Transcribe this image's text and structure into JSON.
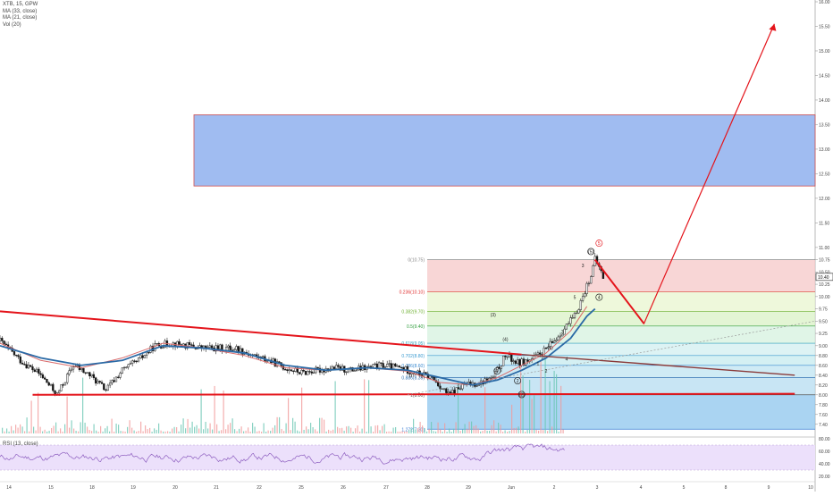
{
  "header": {
    "symbol_line": "XTB, 15, GPW",
    "indicators": [
      "MA (33, close)",
      "MA (21, close)",
      "Vol (20)"
    ]
  },
  "rsi_label": "RSI (13, close)",
  "colors": {
    "trend": "#e4141b",
    "ma_slow": "#2b6aa6",
    "ma_fast": "#d96a6a",
    "target_box": "#8fb0ee",
    "rsi_band": "#ece0fb",
    "rsi_line": "#8e5fc0",
    "vol_up": "#6cc7b4",
    "vol_down": "#f19a9a"
  },
  "chart_data": {
    "type": "candlestick",
    "symbol": "XTB",
    "interval": "15",
    "exchange": "GPW",
    "ylim": [
      7.25,
      16.0
    ],
    "price_scale": {
      "ticks": [
        "16.00",
        "15.50",
        "15.00",
        "14.50",
        "14.00",
        "13.50",
        "13.00",
        "12.50",
        "12.00",
        "11.50",
        "11.00",
        "10.75",
        "10.50",
        "10.25",
        "10.00",
        "9.75",
        "9.50",
        "9.25",
        "9.00",
        "8.80",
        "8.60",
        "8.40",
        "8.20",
        "8.00",
        "7.80",
        "7.60",
        "7.40"
      ],
      "current_price": "10.40"
    },
    "x_axis": {
      "ticks": [
        "14",
        "15",
        "18",
        "19",
        "20",
        "21",
        "22",
        "25",
        "26",
        "27",
        "28",
        "29",
        "Jun",
        "2",
        "3",
        "4",
        "5",
        "8",
        "9",
        "10"
      ]
    },
    "price_path": [
      [
        0,
        9.1
      ],
      [
        5,
        8.7
      ],
      [
        10,
        8.4
      ],
      [
        14,
        8.0
      ],
      [
        18,
        8.6
      ],
      [
        22,
        8.4
      ],
      [
        26,
        8.1
      ],
      [
        30,
        8.5
      ],
      [
        34,
        8.7
      ],
      [
        38,
        9.0
      ],
      [
        42,
        9.05
      ],
      [
        46,
        9.0
      ],
      [
        50,
        8.95
      ],
      [
        54,
        8.95
      ],
      [
        58,
        8.95
      ],
      [
        62,
        8.8
      ],
      [
        66,
        8.7
      ],
      [
        70,
        8.55
      ],
      [
        74,
        8.45
      ],
      [
        78,
        8.5
      ],
      [
        82,
        8.55
      ],
      [
        86,
        8.5
      ],
      [
        90,
        8.55
      ],
      [
        94,
        8.6
      ],
      [
        98,
        8.55
      ],
      [
        102,
        8.45
      ],
      [
        106,
        8.35
      ],
      [
        110,
        8.0
      ],
      [
        114,
        8.2
      ],
      [
        118,
        8.25
      ],
      [
        121,
        8.35
      ],
      [
        124,
        8.8
      ],
      [
        127,
        8.65
      ],
      [
        130,
        8.7
      ],
      [
        133,
        8.85
      ],
      [
        136,
        9.1
      ],
      [
        139,
        9.4
      ],
      [
        141,
        9.6
      ],
      [
        143,
        10.0
      ],
      [
        145,
        10.45
      ],
      [
        146,
        10.75
      ],
      [
        147,
        10.6
      ],
      [
        148,
        10.4
      ]
    ],
    "moving_averages": {
      "ma_33": [
        [
          0,
          9.0
        ],
        [
          10,
          8.75
        ],
        [
          20,
          8.6
        ],
        [
          30,
          8.7
        ],
        [
          40,
          9.0
        ],
        [
          50,
          8.95
        ],
        [
          60,
          8.85
        ],
        [
          70,
          8.6
        ],
        [
          80,
          8.5
        ],
        [
          90,
          8.55
        ],
        [
          100,
          8.5
        ],
        [
          108,
          8.35
        ],
        [
          116,
          8.2
        ],
        [
          122,
          8.3
        ],
        [
          128,
          8.5
        ],
        [
          134,
          8.75
        ],
        [
          140,
          9.15
        ],
        [
          144,
          9.6
        ],
        [
          146,
          9.75
        ]
      ],
      "ma_21": [
        [
          0,
          9.05
        ],
        [
          10,
          8.7
        ],
        [
          20,
          8.55
        ],
        [
          30,
          8.75
        ],
        [
          40,
          9.05
        ],
        [
          50,
          8.95
        ],
        [
          60,
          8.8
        ],
        [
          70,
          8.55
        ],
        [
          80,
          8.5
        ],
        [
          90,
          8.55
        ],
        [
          100,
          8.48
        ],
        [
          108,
          8.25
        ],
        [
          116,
          8.2
        ],
        [
          122,
          8.35
        ],
        [
          128,
          8.6
        ],
        [
          134,
          8.85
        ],
        [
          140,
          9.3
        ],
        [
          144,
          9.8
        ]
      ]
    },
    "trendlines": [
      {
        "name": "descending resistance",
        "from": [
          0,
          9.7
        ],
        "to": [
          128,
          8.82
        ]
      },
      {
        "name": "support",
        "from": [
          8,
          8.0
        ],
        "to": [
          195,
          8.02
        ]
      },
      {
        "name": "extended resistance",
        "from": [
          128,
          8.82
        ],
        "to": [
          195,
          8.4
        ]
      }
    ],
    "projection": [
      [
        146,
        10.75
      ],
      [
        158,
        9.45
      ],
      [
        190,
        15.55
      ]
    ],
    "target_zone": {
      "price_low": 12.25,
      "price_high": 13.7
    },
    "fibonacci": {
      "levels": [
        {
          "ratio": "0",
          "price": "10.75",
          "label": "0(10.75)"
        },
        {
          "ratio": "0.236",
          "price": "10.10",
          "label": "0.236(10.10)"
        },
        {
          "ratio": "0.382",
          "price": "9.70",
          "label": "0.382(9.70)"
        },
        {
          "ratio": "0.5",
          "price": "9.40",
          "label": "0.5(9.40)"
        },
        {
          "ratio": "0.618",
          "price": "9.05",
          "label": "0.618(9.05)"
        },
        {
          "ratio": "0.702",
          "price": "8.80",
          "label": "0.702(8.80)"
        },
        {
          "ratio": "0.786",
          "price": "8.60",
          "label": "0.786(8.60)"
        },
        {
          "ratio": "0.886",
          "price": "8.35",
          "label": "0.886(8.35)"
        },
        {
          "ratio": "1",
          "price": "8.00",
          "label": "1(8.00)"
        },
        {
          "ratio": "1.272",
          "price": "7.30",
          "label": "1.272(7.30)"
        }
      ]
    },
    "wave_labels": [
      "(1)",
      "(2)",
      "(3)",
      "(4)",
      "(5)",
      "1",
      "2",
      "3",
      "4",
      "5",
      "1",
      "2",
      "3",
      "4",
      "5"
    ],
    "rsi": {
      "name": "RSI (13, close)",
      "ylim": [
        20,
        80
      ],
      "ticks": [
        "80.00",
        "60.00",
        "40.00",
        "20.00"
      ]
    }
  }
}
